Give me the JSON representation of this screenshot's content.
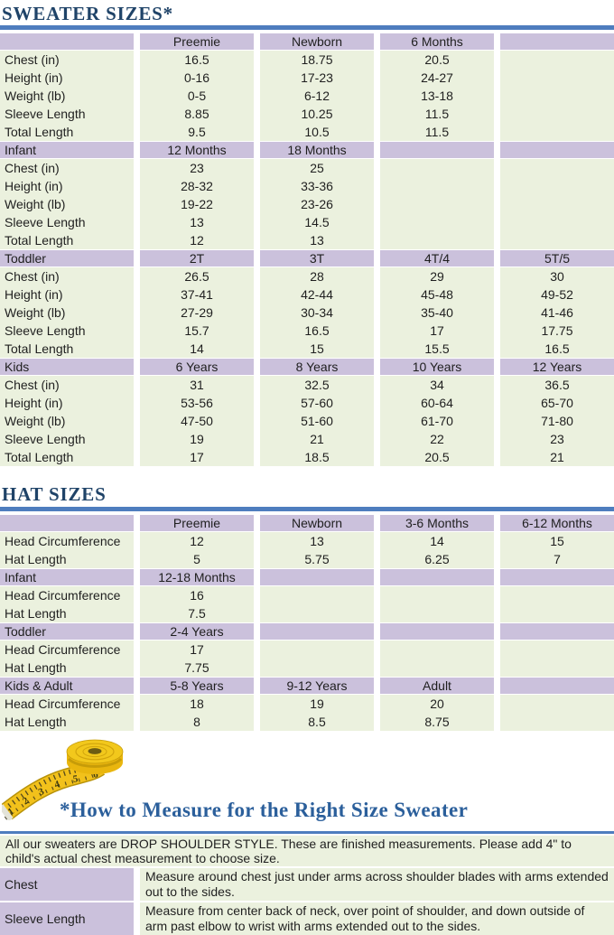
{
  "colors": {
    "title_navy": "#1F4368",
    "heading_blue": "#2B5F9B",
    "bar_blue": "#4E7DBE",
    "purple": "#CBC1DC",
    "green": "#EBF1DE",
    "tape_yellow": "#F2C11B",
    "text_dark": "#1F1F1F"
  },
  "sweater": {
    "title": "SWEATER SIZES*",
    "sections": [
      {
        "header": [
          "",
          "Preemie",
          "Newborn",
          "6 Months",
          ""
        ],
        "rows": [
          {
            "label": "Chest (in)",
            "values": [
              "16.5",
              "18.75",
              "20.5",
              ""
            ]
          },
          {
            "label": "Height (in)",
            "values": [
              "0-16",
              "17-23",
              "24-27",
              ""
            ]
          },
          {
            "label": "Weight (lb)",
            "values": [
              "0-5",
              "6-12",
              "13-18",
              ""
            ]
          },
          {
            "label": "Sleeve Length",
            "values": [
              "8.85",
              "10.25",
              "11.5",
              ""
            ]
          },
          {
            "label": "Total Length",
            "values": [
              "9.5",
              "10.5",
              "11.5",
              ""
            ]
          }
        ]
      },
      {
        "header": [
          "Infant",
          "12 Months",
          "18 Months",
          "",
          ""
        ],
        "rows": [
          {
            "label": "Chest (in)",
            "values": [
              "23",
              "25",
              "",
              ""
            ]
          },
          {
            "label": "Height (in)",
            "values": [
              "28-32",
              "33-36",
              "",
              ""
            ]
          },
          {
            "label": "Weight (lb)",
            "values": [
              "19-22",
              "23-26",
              "",
              ""
            ]
          },
          {
            "label": "Sleeve Length",
            "values": [
              "13",
              "14.5",
              "",
              ""
            ]
          },
          {
            "label": "Total Length",
            "values": [
              "12",
              "13",
              "",
              ""
            ]
          }
        ]
      },
      {
        "header": [
          "Toddler",
          "2T",
          "3T",
          "4T/4",
          "5T/5"
        ],
        "rows": [
          {
            "label": "Chest (in)",
            "values": [
              "26.5",
              "28",
              "29",
              "30"
            ]
          },
          {
            "label": "Height (in)",
            "values": [
              "37-41",
              "42-44",
              "45-48",
              "49-52"
            ]
          },
          {
            "label": "Weight (lb)",
            "values": [
              "27-29",
              "30-34",
              "35-40",
              "41-46"
            ]
          },
          {
            "label": "Sleeve Length",
            "values": [
              "15.7",
              "16.5",
              "17",
              "17.75"
            ]
          },
          {
            "label": "Total Length",
            "values": [
              "14",
              "15",
              "15.5",
              "16.5"
            ]
          }
        ]
      },
      {
        "header": [
          "Kids",
          "6 Years",
          "8 Years",
          "10 Years",
          "12 Years"
        ],
        "rows": [
          {
            "label": "Chest (in)",
            "values": [
              "31",
              "32.5",
              "34",
              "36.5"
            ]
          },
          {
            "label": "Height (in)",
            "values": [
              "53-56",
              "57-60",
              "60-64",
              "65-70"
            ]
          },
          {
            "label": "Weight (lb)",
            "values": [
              "47-50",
              "51-60",
              "61-70",
              "71-80"
            ]
          },
          {
            "label": "Sleeve Length",
            "values": [
              "19",
              "21",
              "22",
              "23"
            ]
          },
          {
            "label": "Total Length",
            "values": [
              "17",
              "18.5",
              "20.5",
              "21"
            ]
          }
        ]
      }
    ]
  },
  "hat": {
    "title": "HAT SIZES",
    "sections": [
      {
        "header": [
          "",
          "Preemie",
          "Newborn",
          "3-6 Months",
          "6-12 Months"
        ],
        "rows": [
          {
            "label": "Head Circumference",
            "values": [
              "12",
              "13",
              "14",
              "15"
            ]
          },
          {
            "label": "Hat Length",
            "values": [
              "5",
              "5.75",
              "6.25",
              "7"
            ]
          }
        ]
      },
      {
        "header": [
          "Infant",
          "12-18 Months",
          "",
          "",
          ""
        ],
        "rows": [
          {
            "label": "Head Circumference",
            "values": [
              "16",
              "",
              "",
              ""
            ]
          },
          {
            "label": "Hat Length",
            "values": [
              "7.5",
              "",
              "",
              ""
            ]
          }
        ]
      },
      {
        "header": [
          "Toddler",
          "2-4 Years",
          "",
          "",
          ""
        ],
        "rows": [
          {
            "label": "Head Circumference",
            "values": [
              "17",
              "",
              "",
              ""
            ]
          },
          {
            "label": "Hat Length",
            "values": [
              "7.75",
              "",
              "",
              ""
            ]
          }
        ]
      },
      {
        "header": [
          "Kids & Adult",
          "5-8 Years",
          "9-12 Years",
          "Adult",
          ""
        ],
        "rows": [
          {
            "label": "Head Circumference",
            "values": [
              "18",
              "19",
              "20",
              ""
            ]
          },
          {
            "label": "Hat Length",
            "values": [
              "8",
              "8.5",
              "8.75",
              ""
            ]
          }
        ]
      }
    ]
  },
  "measure": {
    "title": "*How to Measure for the Right Size Sweater",
    "intro": "All our sweaters are DROP SHOULDER STYLE.  These are finished measurements.  Please add 4\" to child's actual chest measurement to choose size.",
    "rows": [
      {
        "label": "Chest",
        "text": "Measure around chest just under arms across shoulder blades with arms extended out to the sides."
      },
      {
        "label": "Sleeve Length",
        "text": "Measure from center back of neck, over point of shoulder, and down outside of arm past elbow to wrist with arms extended out to the sides."
      }
    ]
  },
  "tape": {
    "numbers": [
      "1",
      "2",
      "3",
      "4",
      "5",
      "6"
    ]
  }
}
